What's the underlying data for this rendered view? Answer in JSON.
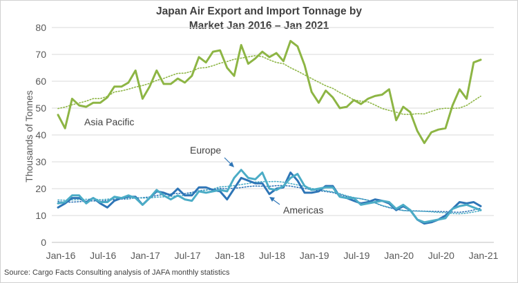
{
  "title_line1": "Japan Air Export and Import Tonnage by",
  "title_line2": "Market Jan 2016 – Jan 2021",
  "source": "Source: Cargo Facts Consulting analysis of JAFA monthly statistics",
  "chart_data": {
    "type": "line",
    "title": "Japan Air Export and Import Tonnage by Market Jan 2016 – Jan 2021",
    "ylabel": "Thousands of Tonnes",
    "xlabel": "",
    "ylim": [
      0,
      80
    ],
    "yticks": [
      0,
      10,
      20,
      30,
      40,
      50,
      60,
      70,
      80
    ],
    "grid": "horizontal",
    "legend": "none",
    "x_tick_labels": [
      "Jan-16",
      "Jul-16",
      "Jan-17",
      "Jul-17",
      "Jan-18",
      "Jul-18",
      "Jan-19",
      "Jul-19",
      "Jan-20",
      "Jul-20",
      "Jan-21"
    ],
    "series": [
      {
        "name": "Asia Pacific",
        "color": "#8db544",
        "values": [
          47.5,
          42.5,
          53.5,
          51,
          50.5,
          52,
          52,
          54,
          58,
          58,
          59.5,
          64,
          53.5,
          58,
          64,
          59,
          59,
          61,
          59.5,
          62,
          69,
          67,
          71,
          71.5,
          65,
          62,
          73.5,
          66.5,
          68.5,
          71,
          69,
          70.5,
          67.5,
          75,
          73,
          66,
          56,
          52,
          56.5,
          54,
          50,
          50.5,
          53,
          51.5,
          53.5,
          54.5,
          55,
          57,
          45.5,
          50.5,
          48.5,
          41.5,
          37,
          41,
          42,
          42.5,
          51,
          57,
          53.5,
          67,
          68
        ]
      },
      {
        "name": "Europe",
        "color": "#4bacc6",
        "values": [
          14.5,
          15,
          17.5,
          17.5,
          14.5,
          16.5,
          15,
          15,
          17,
          16.5,
          17.5,
          16.5,
          14,
          16.5,
          19.5,
          17.5,
          16,
          17.5,
          16,
          15.5,
          19,
          18.5,
          19,
          19.5,
          19,
          24,
          27,
          24,
          23.5,
          26,
          20,
          19.5,
          21,
          24,
          25.5,
          21,
          19.5,
          20,
          20.5,
          20.5,
          17,
          16.5,
          16.5,
          14,
          14.5,
          15,
          15.5,
          15,
          12.5,
          14,
          12,
          8.5,
          7.5,
          8,
          8.5,
          9,
          12.5,
          13.5,
          14,
          13,
          12
        ]
      },
      {
        "name": "Americas",
        "color": "#2e75b6",
        "values": [
          13,
          14.5,
          16.5,
          16.5,
          15,
          16.5,
          14.5,
          13,
          15.5,
          16.5,
          17,
          17,
          14,
          16.5,
          19,
          18.5,
          17.5,
          20,
          17.5,
          17.5,
          20.5,
          20.5,
          19.5,
          19,
          16,
          20,
          24,
          23,
          22,
          22,
          18,
          20,
          20.5,
          26,
          23,
          18.5,
          18.5,
          19,
          21,
          21,
          17,
          16.5,
          15.5,
          14.5,
          15,
          16,
          15.5,
          14.5,
          12,
          13.5,
          12,
          8.5,
          7,
          7.5,
          8.5,
          10,
          12.5,
          15,
          14.5,
          15,
          13.5
        ]
      }
    ],
    "annotations": [
      {
        "text": "Asia Pacific",
        "series": "Asia Pacific"
      },
      {
        "text": "Europe",
        "series": "Europe"
      },
      {
        "text": "Americas",
        "series": "Americas"
      }
    ]
  }
}
